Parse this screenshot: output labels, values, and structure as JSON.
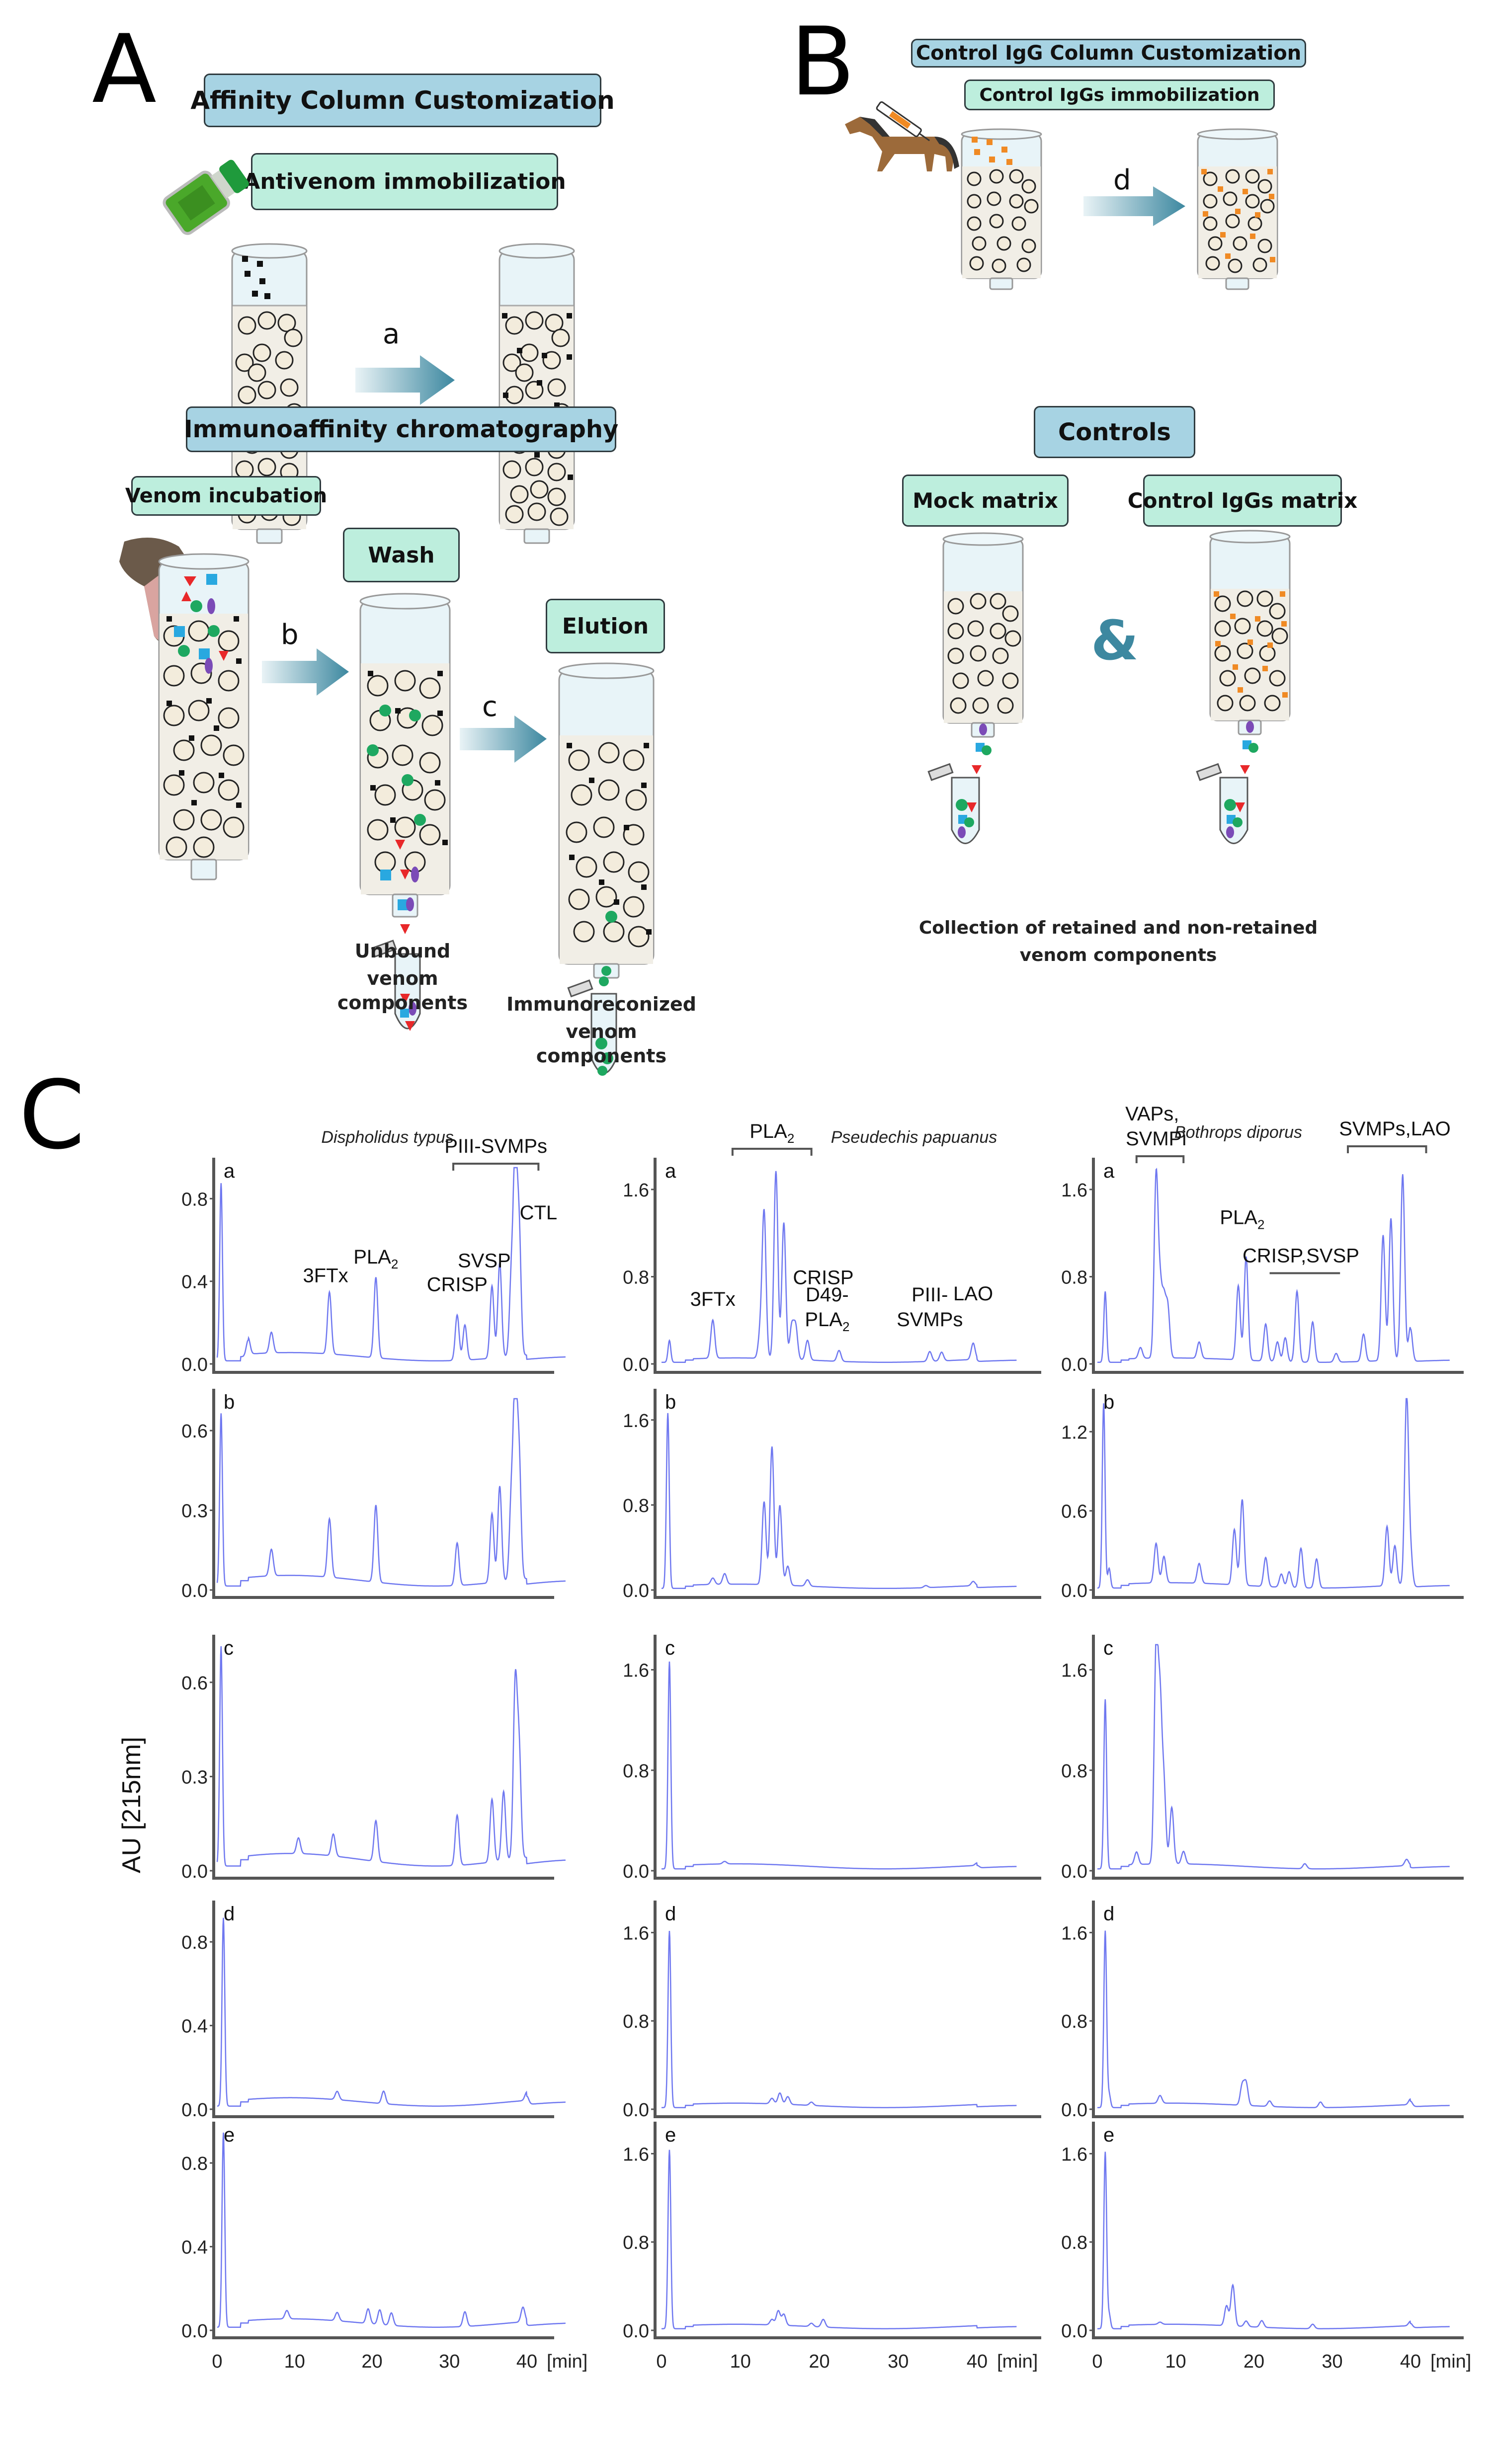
{
  "panel_a": {
    "letter": "A",
    "title": "Affinity Column Customization",
    "step1_label": "Antivenom immobilization",
    "arrow_a": "a",
    "section2_title": "Immunoaffinity chromatography",
    "venom_incubation": "Venom incubation",
    "arrow_b": "b",
    "wash": "Wash",
    "arrow_c": "c",
    "elution": "Elution",
    "unbound_caption_1": "Unbound",
    "unbound_caption_2": "venom components",
    "immuno_caption_1": "Immunoreconized",
    "immuno_caption_2": "venom components"
  },
  "panel_b": {
    "letter": "B",
    "title": "Control IgG Column Customization",
    "step_label": "Control IgGs immobilization",
    "arrow_d": "d",
    "controls_title": "Controls",
    "mock_matrix": "Mock matrix",
    "control_igg_matrix": "Control IgGs matrix",
    "ampersand": "&",
    "collection_caption_1": "Collection of retained and non-retained",
    "collection_caption_2": "venom components"
  },
  "panel_c": {
    "letter": "C",
    "ylabel": "AU [215nm]",
    "xunit": "[min]"
  },
  "colors": {
    "trace": "#6f78f0",
    "header_blue": "#a7d3e3",
    "header_green": "#bdeedd",
    "arrow": "#3d88a0",
    "bead": "#f3ecdc",
    "antibody": "#111111",
    "control_igg": "#f08a24"
  },
  "chart_data": [
    {
      "type": "line",
      "title": "Dispholidus typus",
      "column": 1,
      "xlabel": "[min]",
      "ylabel": "AU [215nm]",
      "xticks": [
        0,
        10,
        20,
        30,
        40
      ],
      "xlim": [
        0,
        45
      ],
      "rows": [
        {
          "label": "a",
          "yticks": [
            0.0,
            0.4,
            0.8
          ],
          "ylim": [
            0,
            0.95
          ],
          "peaks": [
            [
              0.5,
              0.86
            ],
            [
              4,
              0.08
            ],
            [
              7,
              0.1
            ],
            [
              14.5,
              0.3
            ],
            [
              20.5,
              0.39
            ],
            [
              31,
              0.22
            ],
            [
              32,
              0.17
            ],
            [
              35.5,
              0.35
            ],
            [
              36.5,
              0.46
            ],
            [
              38,
              0.37
            ],
            [
              38.5,
              0.93
            ],
            [
              39,
              0.6
            ]
          ],
          "annotations": [
            "3FTx",
            "PLA2",
            "CRISP",
            "SVSP",
            "CTL",
            "PIII-SVMPs"
          ]
        },
        {
          "label": "b",
          "yticks": [
            0.0,
            0.3,
            0.6
          ],
          "ylim": [
            0,
            0.72
          ],
          "peaks": [
            [
              0.5,
              0.65
            ],
            [
              7,
              0.1
            ],
            [
              14.5,
              0.22
            ],
            [
              20.5,
              0.29
            ],
            [
              31,
              0.16
            ],
            [
              35.5,
              0.26
            ],
            [
              36.5,
              0.36
            ],
            [
              38,
              0.3
            ],
            [
              38.5,
              0.71
            ],
            [
              39,
              0.45
            ]
          ]
        },
        {
          "label": "c",
          "yticks": [
            0.0,
            0.3,
            0.6
          ],
          "ylim": [
            0,
            0.72
          ],
          "peaks": [
            [
              0.5,
              0.7
            ],
            [
              10.5,
              0.05
            ],
            [
              15,
              0.07
            ],
            [
              20.5,
              0.13
            ],
            [
              31,
              0.16
            ],
            [
              35.5,
              0.2
            ],
            [
              37,
              0.22
            ],
            [
              38.5,
              0.55
            ],
            [
              39,
              0.34
            ]
          ]
        },
        {
          "label": "d",
          "yticks": [
            0.0,
            0.4,
            0.8
          ],
          "ylim": [
            0,
            0.95
          ],
          "peaks": [
            [
              0.8,
              0.9
            ],
            [
              15.5,
              0.04
            ],
            [
              21.5,
              0.06
            ],
            [
              40,
              0.04
            ]
          ]
        },
        {
          "label": "e",
          "yticks": [
            0.0,
            0.4,
            0.8
          ],
          "ylim": [
            0,
            0.95
          ],
          "peaks": [
            [
              0.8,
              0.93
            ],
            [
              9,
              0.04
            ],
            [
              15.5,
              0.04
            ],
            [
              19.5,
              0.07
            ],
            [
              21,
              0.07
            ],
            [
              22.5,
              0.06
            ],
            [
              32,
              0.07
            ],
            [
              39.5,
              0.07
            ]
          ]
        }
      ]
    },
    {
      "type": "line",
      "title": "Pseudechis papuanus",
      "column": 2,
      "xlabel": "[min]",
      "ylabel": "AU [215nm]",
      "xticks": [
        0,
        10,
        20,
        30,
        40
      ],
      "xlim": [
        0,
        45
      ],
      "rows": [
        {
          "label": "a",
          "yticks": [
            0.0,
            0.8,
            1.6
          ],
          "ylim": [
            0,
            1.8
          ],
          "peaks": [
            [
              1,
              0.2
            ],
            [
              6.5,
              0.35
            ],
            [
              12.5,
              0.22
            ],
            [
              13,
              1.34
            ],
            [
              14.5,
              1.72
            ],
            [
              15.5,
              1.25
            ],
            [
              16.5,
              0.3
            ],
            [
              17,
              0.3
            ],
            [
              18.5,
              0.18
            ],
            [
              22.5,
              0.1
            ],
            [
              34,
              0.09
            ],
            [
              35.5,
              0.08
            ],
            [
              39.5,
              0.15
            ]
          ],
          "annotations": [
            "PLA2",
            "3FTx",
            "CRISP",
            "D49-PLA2",
            "PIII-SVMPs",
            "LAO"
          ]
        },
        {
          "label": "b",
          "yticks": [
            0.0,
            0.8,
            1.6
          ],
          "ylim": [
            0,
            1.8
          ],
          "peaks": [
            [
              0.8,
              1.65
            ],
            [
              6.5,
              0.06
            ],
            [
              8,
              0.1
            ],
            [
              13,
              0.78
            ],
            [
              14,
              1.3
            ],
            [
              15,
              0.75
            ],
            [
              16,
              0.18
            ],
            [
              18.5,
              0.06
            ],
            [
              33.5,
              0.02
            ],
            [
              39.5,
              0.04
            ]
          ]
        },
        {
          "label": "c",
          "yticks": [
            0.0,
            0.8,
            1.6
          ],
          "ylim": [
            0,
            1.8
          ],
          "peaks": [
            [
              1,
              1.65
            ],
            [
              8,
              0.02
            ],
            [
              40,
              0.02
            ]
          ]
        },
        {
          "label": "d",
          "yticks": [
            0.0,
            0.8,
            1.6
          ],
          "ylim": [
            0,
            1.8
          ],
          "peaks": [
            [
              1,
              1.6
            ],
            [
              14,
              0.05
            ],
            [
              15,
              0.1
            ],
            [
              16,
              0.07
            ],
            [
              19,
              0.03
            ]
          ]
        },
        {
          "label": "e",
          "yticks": [
            0.0,
            0.8,
            1.6
          ],
          "ylim": [
            0,
            1.8
          ],
          "peaks": [
            [
              1,
              1.62
            ],
            [
              14,
              0.05
            ],
            [
              14.8,
              0.13
            ],
            [
              15.5,
              0.1
            ],
            [
              19,
              0.03
            ],
            [
              20.5,
              0.07
            ]
          ]
        }
      ]
    },
    {
      "type": "line",
      "title": "Bothrops diporus",
      "column": 3,
      "xlabel": "[min]",
      "ylabel": "AU [215nm]",
      "xticks": [
        0,
        10,
        20,
        30,
        40
      ],
      "xlim": [
        0,
        45
      ],
      "rows": [
        {
          "label": "a",
          "yticks": [
            0.0,
            0.8,
            1.6
          ],
          "ylim": [
            0,
            1.8
          ],
          "peaks": [
            [
              1,
              0.65
            ],
            [
              5.5,
              0.1
            ],
            [
              7.5,
              1.65
            ],
            [
              8,
              0.6
            ],
            [
              8.5,
              0.5
            ],
            [
              9,
              0.45
            ],
            [
              13,
              0.15
            ],
            [
              18,
              0.68
            ],
            [
              19,
              0.95
            ],
            [
              21.5,
              0.34
            ],
            [
              23,
              0.18
            ],
            [
              24,
              0.22
            ],
            [
              25.5,
              0.65
            ],
            [
              27.5,
              0.37
            ],
            [
              30.5,
              0.08
            ],
            [
              34,
              0.25
            ],
            [
              36.5,
              1.15
            ],
            [
              37.5,
              1.3
            ],
            [
              39,
              1.7
            ],
            [
              40,
              0.3
            ]
          ],
          "annotations": [
            "VAPs, SVMPi",
            "PLA2",
            "CRISP,SVSP",
            "SVMPs,LAO"
          ]
        },
        {
          "label": "b",
          "yticks": [
            0.0,
            0.6,
            1.2
          ],
          "ylim": [
            0,
            1.45
          ],
          "peaks": [
            [
              0.8,
              1.4
            ],
            [
              1.5,
              0.15
            ],
            [
              7.5,
              0.3
            ],
            [
              8.5,
              0.2
            ],
            [
              13,
              0.15
            ],
            [
              17.5,
              0.42
            ],
            [
              18.5,
              0.65
            ],
            [
              21.5,
              0.22
            ],
            [
              23.5,
              0.1
            ],
            [
              24.5,
              0.12
            ],
            [
              26,
              0.3
            ],
            [
              28,
              0.22
            ],
            [
              37,
              0.45
            ],
            [
              38,
              0.3
            ],
            [
              39.5,
              1.42
            ],
            [
              40,
              0.25
            ]
          ]
        },
        {
          "label": "c",
          "yticks": [
            0.0,
            0.8,
            1.6
          ],
          "ylim": [
            0,
            1.8
          ],
          "peaks": [
            [
              1,
              1.35
            ],
            [
              5,
              0.1
            ],
            [
              7.5,
              1.68
            ],
            [
              8,
              1.2
            ],
            [
              8.5,
              0.6
            ],
            [
              9.5,
              0.45
            ],
            [
              11,
              0.1
            ],
            [
              26.5,
              0.04
            ],
            [
              39.5,
              0.05
            ]
          ]
        },
        {
          "label": "d",
          "yticks": [
            0.0,
            0.8,
            1.6
          ],
          "ylim": [
            0,
            1.8
          ],
          "peaks": [
            [
              1,
              1.6
            ],
            [
              1.5,
              0.12
            ],
            [
              8,
              0.07
            ],
            [
              18.5,
              0.18
            ],
            [
              19,
              0.2
            ],
            [
              22,
              0.05
            ],
            [
              28.5,
              0.05
            ],
            [
              40,
              0.05
            ]
          ]
        },
        {
          "label": "e",
          "yticks": [
            0.0,
            0.8,
            1.6
          ],
          "ylim": [
            0,
            1.8
          ],
          "peaks": [
            [
              1,
              1.6
            ],
            [
              1.5,
              0.13
            ],
            [
              8,
              0.02
            ],
            [
              16.5,
              0.18
            ],
            [
              17.3,
              0.37
            ],
            [
              19,
              0.05
            ],
            [
              21,
              0.06
            ],
            [
              27.5,
              0.04
            ],
            [
              40,
              0.04
            ]
          ]
        }
      ]
    }
  ]
}
